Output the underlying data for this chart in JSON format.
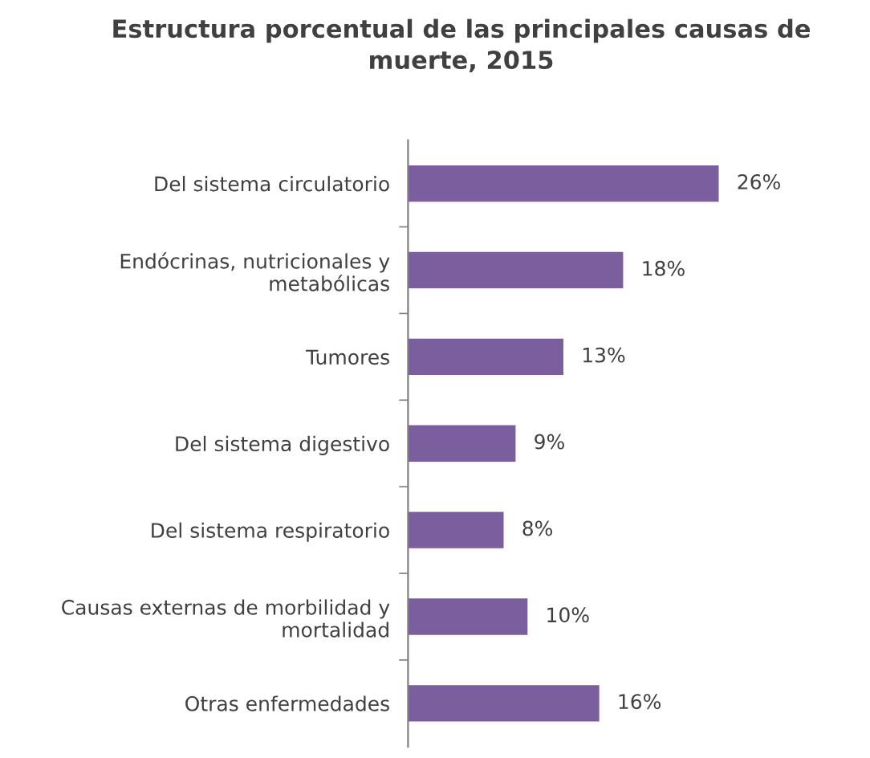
{
  "chart_data": {
    "type": "bar",
    "orientation": "horizontal",
    "title": "Estructura porcentual de las principales causas de muerte, 2015",
    "categories": [
      "Del sistema circulatorio",
      "Endócrinas, nutricionales y metabólicas",
      "Tumores",
      "Del sistema digestivo",
      "Del sistema respiratorio",
      "Causas externas de morbilidad y mortalidad",
      "Otras enfermedades"
    ],
    "values": [
      26,
      18,
      13,
      9,
      8,
      10,
      16
    ],
    "value_labels": [
      "26%",
      "18%",
      "13%",
      "9%",
      "8%",
      "10%",
      "16%"
    ],
    "color": "#7b5e9e",
    "grid": false,
    "legend": false
  }
}
